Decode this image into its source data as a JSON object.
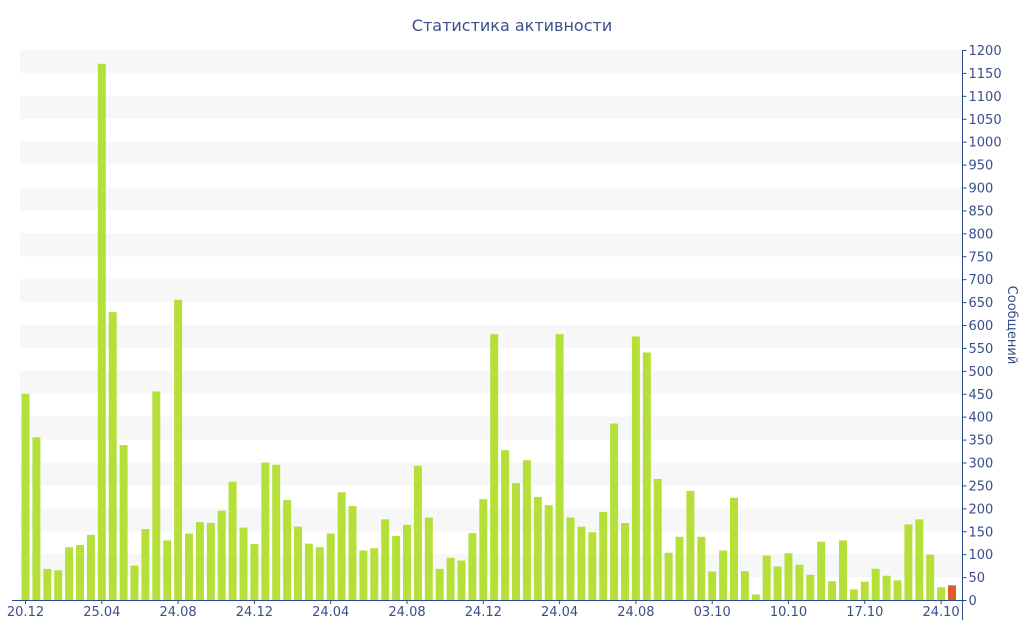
{
  "chart_data": {
    "type": "bar",
    "title": "Статистика активности",
    "xlabel": "",
    "ylabel": "Сообщений",
    "ylim": [
      0,
      1200
    ],
    "y_ticks": [
      0,
      50,
      100,
      150,
      200,
      250,
      300,
      350,
      400,
      450,
      500,
      550,
      600,
      650,
      700,
      750,
      800,
      850,
      900,
      950,
      1000,
      1050,
      1100,
      1150,
      1200
    ],
    "y_axis_position": "right",
    "grid": "alternating horizontal bands",
    "legend": "none",
    "x_tick_labels": [
      {
        "label": "20.12",
        "index": 0
      },
      {
        "label": "25.04",
        "index": 7
      },
      {
        "label": "24.08",
        "index": 14
      },
      {
        "label": "24.12",
        "index": 21
      },
      {
        "label": "24.04",
        "index": 28
      },
      {
        "label": "24.08",
        "index": 35
      },
      {
        "label": "24.12",
        "index": 42
      },
      {
        "label": "24.04",
        "index": 49
      },
      {
        "label": "24.08",
        "index": 56
      },
      {
        "label": "03.10",
        "index": 63
      },
      {
        "label": "10.10",
        "index": 70
      },
      {
        "label": "17.10",
        "index": 77
      },
      {
        "label": "24.10",
        "index": 84
      }
    ],
    "values": [
      450,
      355,
      68,
      65,
      115,
      120,
      142,
      1170,
      628,
      338,
      75,
      155,
      455,
      130,
      655,
      145,
      170,
      168,
      195,
      258,
      158,
      122,
      300,
      295,
      218,
      160,
      123,
      115,
      145,
      235,
      205,
      108,
      113,
      176,
      140,
      164,
      293,
      180,
      68,
      92,
      86,
      146,
      220,
      580,
      327,
      255,
      305,
      225,
      207,
      580,
      180,
      160,
      148,
      192,
      385,
      168,
      575,
      540,
      264,
      103,
      138,
      238,
      138,
      62,
      108,
      223,
      63,
      12,
      97,
      73,
      102,
      77,
      55,
      127,
      41,
      130,
      23,
      40,
      68,
      53,
      43,
      165,
      176,
      99,
      28,
      32
    ],
    "colors": {
      "bar": "#b5e03a",
      "highlight": "#e05a2a",
      "axis": "#2e4a8f",
      "text": "#3a4f8a",
      "band": "#f7f7f7"
    },
    "highlight_index": 85
  }
}
